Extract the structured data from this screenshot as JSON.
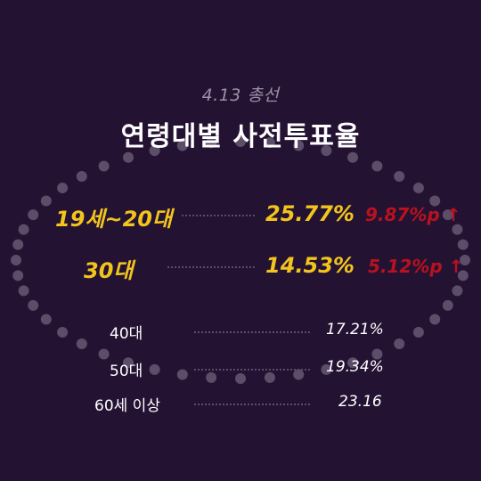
{
  "header": {
    "subtitle": "4.13 총선",
    "title": "연령대별 사전투표율"
  },
  "highlight_rows": [
    {
      "label": "19세~20대",
      "value": "25.77%",
      "delta": "9.87%p ↑"
    },
    {
      "label": "30대",
      "value": "14.53%",
      "delta": "5.12%p ↑"
    }
  ],
  "rows": [
    {
      "label": "40대",
      "value": "17.21%"
    },
    {
      "label": "50대",
      "value": "19.34%"
    },
    {
      "label": "60세 이상",
      "value": "23.16"
    }
  ],
  "colors": {
    "background": "#241233",
    "highlight": "#f2c51d",
    "delta": "#b8121e",
    "dots": "#8a7d95"
  }
}
